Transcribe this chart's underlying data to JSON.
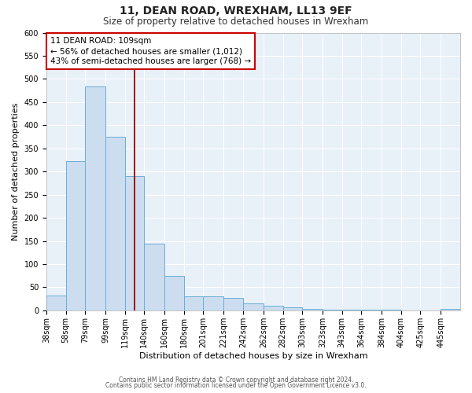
{
  "title": "11, DEAN ROAD, WREXHAM, LL13 9EF",
  "subtitle": "Size of property relative to detached houses in Wrexham",
  "xlabel": "Distribution of detached houses by size in Wrexham",
  "ylabel": "Number of detached properties",
  "bar_color": "#ccddf0",
  "bar_edge_color": "#6baed6",
  "background_color": "#e8f0f8",
  "fig_background": "#ffffff",
  "grid_color": "#ffffff",
  "categories": [
    "38sqm",
    "58sqm",
    "79sqm",
    "99sqm",
    "119sqm",
    "140sqm",
    "160sqm",
    "180sqm",
    "201sqm",
    "221sqm",
    "242sqm",
    "262sqm",
    "282sqm",
    "303sqm",
    "323sqm",
    "343sqm",
    "364sqm",
    "384sqm",
    "404sqm",
    "425sqm",
    "445sqm"
  ],
  "values": [
    32,
    322,
    483,
    375,
    291,
    145,
    75,
    31,
    30,
    27,
    15,
    10,
    7,
    3,
    2,
    2,
    1,
    1,
    0,
    0,
    3
  ],
  "ylim": [
    0,
    600
  ],
  "yticks": [
    0,
    50,
    100,
    150,
    200,
    250,
    300,
    350,
    400,
    450,
    500,
    550,
    600
  ],
  "vline_x": 109,
  "bin_edges": [
    18,
    38,
    58,
    79,
    99,
    119,
    140,
    160,
    180,
    201,
    221,
    242,
    262,
    282,
    303,
    323,
    343,
    364,
    384,
    404,
    425,
    445
  ],
  "annotation_title": "11 DEAN ROAD: 109sqm",
  "annotation_line1": "← 56% of detached houses are smaller (1,012)",
  "annotation_line2": "43% of semi-detached houses are larger (768) →",
  "footer1": "Contains HM Land Registry data © Crown copyright and database right 2024.",
  "footer2": "Contains public sector information licensed under the Open Government Licence v3.0.",
  "title_fontsize": 10,
  "subtitle_fontsize": 8.5,
  "xlabel_fontsize": 8,
  "ylabel_fontsize": 8,
  "tick_fontsize": 7,
  "annotation_fontsize": 7.5,
  "footer_fontsize": 5.5
}
